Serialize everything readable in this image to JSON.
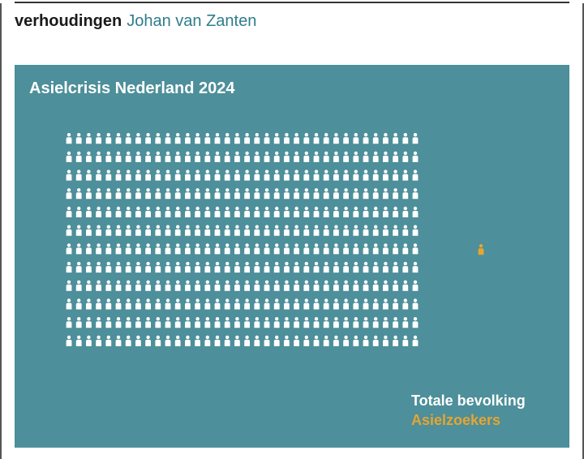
{
  "header": {
    "section": "verhoudingen",
    "author": "Johan van Zanten"
  },
  "colors": {
    "background": "#4d8f9a",
    "population": "#ffffff",
    "asylum": "#e6a532",
    "author": "#2e7d8c"
  },
  "chart_data": {
    "type": "pictogram",
    "title": "Asielcrisis Nederland 2024",
    "series": [
      {
        "name": "Totale bevolking",
        "icon": "person-icon",
        "color": "#ffffff",
        "rows": 12,
        "columns": 36,
        "count": 432
      },
      {
        "name": "Asielzoekers",
        "icon": "person-icon",
        "color": "#e6a532",
        "count": 1
      }
    ]
  }
}
